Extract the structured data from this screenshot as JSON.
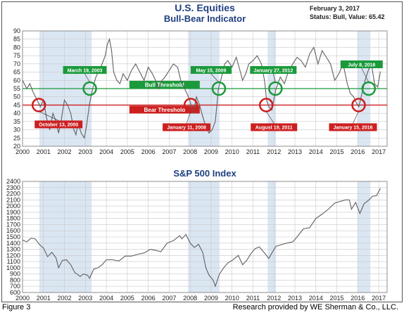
{
  "header": {
    "title": "U.S. Equities",
    "subtitle": "Bull-Bear Indicator",
    "date": "February 3, 2017",
    "status": "Status: Bull, Value: 65.42"
  },
  "footer": {
    "figure": "Figure 3",
    "credit": "Research provided by WE Sherman & Co., LLC."
  },
  "colors": {
    "bull": "#1a9a3a",
    "bear": "#cc1f1f",
    "shade": "#dbe6f3",
    "line": "#606060",
    "grid": "#c8c8c8",
    "title": "#1f3f7f"
  },
  "chart_data": [
    {
      "type": "line",
      "title": "U.S. Equities",
      "subtitle": "Bull-Bear Indicator",
      "xlim": [
        2000,
        2017.4
      ],
      "ylim": [
        20,
        90
      ],
      "x_ticks": [
        "2000",
        "2001",
        "2002",
        "2003",
        "2004",
        "2005",
        "2006",
        "2007",
        "2008",
        "2009",
        "2010",
        "2011",
        "2012",
        "2013",
        "2014",
        "2015",
        "2016",
        "2017"
      ],
      "y_ticks": [
        "20",
        "25",
        "30",
        "35",
        "40",
        "45",
        "50",
        "55",
        "60",
        "65",
        "70",
        "75",
        "80",
        "85",
        "90"
      ],
      "grid": true,
      "shaded_periods": [
        [
          2000.8,
          2003.3
        ],
        [
          2007.9,
          2009.4
        ],
        [
          2011.7,
          2012.1
        ],
        [
          2016.0,
          2016.6
        ]
      ],
      "thresholds": [
        {
          "name": "Bull Threshold",
          "value": 55,
          "label_x": 2005.1
        },
        {
          "name": "Bear Threshold",
          "value": 45,
          "label_x": 2005.1
        }
      ],
      "signals": [
        {
          "type": "bear",
          "label": "October 13, 2000",
          "x": 2000.78,
          "y": 45
        },
        {
          "type": "bull",
          "label": "March 19, 2003",
          "x": 2003.21,
          "y": 55
        },
        {
          "type": "bear",
          "label": "January 11, 2008",
          "x": 2008.03,
          "y": 45
        },
        {
          "type": "bull",
          "label": "May 15, 2009",
          "x": 2009.37,
          "y": 55
        },
        {
          "type": "bull",
          "label": "January 27, 2012",
          "x": 2012.07,
          "y": 55
        },
        {
          "type": "bear",
          "label": "August 19, 2011",
          "x": 2011.63,
          "y": 45
        },
        {
          "type": "bear",
          "label": "January 15, 2016",
          "x": 2016.04,
          "y": 45
        },
        {
          "type": "bull",
          "label": "July 8, 2016",
          "x": 2016.52,
          "y": 55
        }
      ],
      "series": [
        {
          "x": [
            2000.0,
            2000.2,
            2000.35,
            2000.5,
            2000.7,
            2000.85,
            2001.0,
            2001.15,
            2001.3,
            2001.45,
            2001.6,
            2001.72,
            2001.85,
            2002.0,
            2002.15,
            2002.3,
            2002.45,
            2002.55,
            2002.65,
            2002.8,
            2002.95,
            2003.05,
            2003.2,
            2003.35,
            2003.5,
            2003.65,
            2003.8,
            2003.95,
            2004.05,
            2004.15,
            2004.25,
            2004.35,
            2004.5,
            2004.65,
            2004.8,
            2005.0,
            2005.2,
            2005.4,
            2005.6,
            2005.8,
            2006.0,
            2006.2,
            2006.35,
            2006.5,
            2006.65,
            2006.8,
            2007.0,
            2007.2,
            2007.4,
            2007.55,
            2007.7,
            2007.85,
            2008.0,
            2008.15,
            2008.3,
            2008.45,
            2008.6,
            2008.75,
            2008.9,
            2009.05,
            2009.2,
            2009.35,
            2009.5,
            2009.65,
            2009.8,
            2010.0,
            2010.2,
            2010.4,
            2010.5,
            2010.65,
            2010.8,
            2011.0,
            2011.2,
            2011.4,
            2011.55,
            2011.65,
            2011.75,
            2011.9,
            2012.1,
            2012.3,
            2012.5,
            2012.7,
            2012.9,
            2013.1,
            2013.3,
            2013.5,
            2013.7,
            2013.9,
            2014.1,
            2014.3,
            2014.5,
            2014.7,
            2014.9,
            2015.1,
            2015.3,
            2015.5,
            2015.65,
            2015.8,
            2015.95,
            2016.05,
            2016.2,
            2016.35,
            2016.5,
            2016.65,
            2016.8,
            2016.95,
            2017.08
          ],
          "y": [
            60,
            55,
            58,
            53,
            48,
            44,
            48,
            37,
            30,
            40,
            35,
            28,
            36,
            48,
            45,
            40,
            30,
            27,
            34,
            28,
            25,
            32,
            46,
            55,
            62,
            66,
            70,
            75,
            82,
            85,
            78,
            65,
            60,
            58,
            64,
            60,
            66,
            70,
            65,
            60,
            68,
            64,
            60,
            55,
            60,
            62,
            66,
            70,
            68,
            60,
            56,
            52,
            47,
            40,
            50,
            45,
            38,
            32,
            28,
            30,
            35,
            55,
            62,
            70,
            72,
            68,
            74,
            65,
            60,
            64,
            70,
            72,
            75,
            70,
            60,
            48,
            44,
            42,
            55,
            62,
            58,
            66,
            70,
            74,
            72,
            68,
            76,
            80,
            70,
            78,
            74,
            70,
            60,
            64,
            70,
            58,
            52,
            50,
            46,
            44,
            52,
            60,
            66,
            70,
            58,
            56,
            65.42
          ]
        }
      ]
    },
    {
      "type": "line",
      "title": "S&P 500 Index",
      "xlim": [
        2000,
        2017.4
      ],
      "ylim": [
        600,
        2400
      ],
      "x_ticks": [
        "2000",
        "2001",
        "2002",
        "2003",
        "2004",
        "2005",
        "2006",
        "2007",
        "2008",
        "2009",
        "2010",
        "2011",
        "2012",
        "2013",
        "2014",
        "2015",
        "2016",
        "2017"
      ],
      "y_ticks": [
        "600",
        "700",
        "800",
        "900",
        "1000",
        "1100",
        "1200",
        "1300",
        "1400",
        "1500",
        "1600",
        "1700",
        "1800",
        "1900",
        "2000",
        "2100",
        "2200",
        "2300",
        "2400"
      ],
      "grid": true,
      "shaded_periods": [
        [
          2000.8,
          2003.3
        ],
        [
          2007.9,
          2009.4
        ],
        [
          2011.7,
          2012.1
        ],
        [
          2016.0,
          2016.6
        ]
      ],
      "series": [
        {
          "x": [
            2000.0,
            2000.2,
            2000.4,
            2000.6,
            2000.8,
            2001.0,
            2001.2,
            2001.4,
            2001.6,
            2001.72,
            2001.9,
            2002.1,
            2002.3,
            2002.5,
            2002.6,
            2002.75,
            2002.9,
            2003.1,
            2003.2,
            2003.4,
            2003.6,
            2003.8,
            2004.0,
            2004.3,
            2004.6,
            2004.9,
            2005.2,
            2005.5,
            2005.8,
            2006.1,
            2006.4,
            2006.6,
            2006.9,
            2007.2,
            2007.5,
            2007.6,
            2007.8,
            2008.0,
            2008.2,
            2008.4,
            2008.6,
            2008.75,
            2008.9,
            2009.1,
            2009.2,
            2009.4,
            2009.6,
            2009.8,
            2010.0,
            2010.3,
            2010.5,
            2010.7,
            2010.9,
            2011.1,
            2011.3,
            2011.6,
            2011.75,
            2011.9,
            2012.1,
            2012.4,
            2012.6,
            2012.9,
            2013.1,
            2013.4,
            2013.7,
            2014.0,
            2014.3,
            2014.6,
            2014.9,
            2015.2,
            2015.4,
            2015.6,
            2015.7,
            2015.9,
            2016.1,
            2016.3,
            2016.5,
            2016.7,
            2016.9,
            2017.08
          ],
          "y": [
            1450,
            1420,
            1480,
            1470,
            1380,
            1320,
            1180,
            1250,
            1160,
            1000,
            1120,
            1130,
            1050,
            920,
            900,
            860,
            900,
            880,
            830,
            980,
            1000,
            1050,
            1130,
            1130,
            1110,
            1190,
            1190,
            1220,
            1240,
            1300,
            1280,
            1260,
            1400,
            1440,
            1520,
            1470,
            1540,
            1400,
            1330,
            1380,
            1250,
            1000,
            880,
            800,
            700,
            900,
            1000,
            1080,
            1120,
            1200,
            1050,
            1120,
            1230,
            1310,
            1340,
            1220,
            1150,
            1240,
            1350,
            1380,
            1400,
            1420,
            1500,
            1630,
            1650,
            1800,
            1870,
            1950,
            2050,
            2080,
            2100,
            2100,
            1950,
            2060,
            1880,
            2040,
            2090,
            2160,
            2170,
            2290
          ]
        }
      ]
    }
  ]
}
